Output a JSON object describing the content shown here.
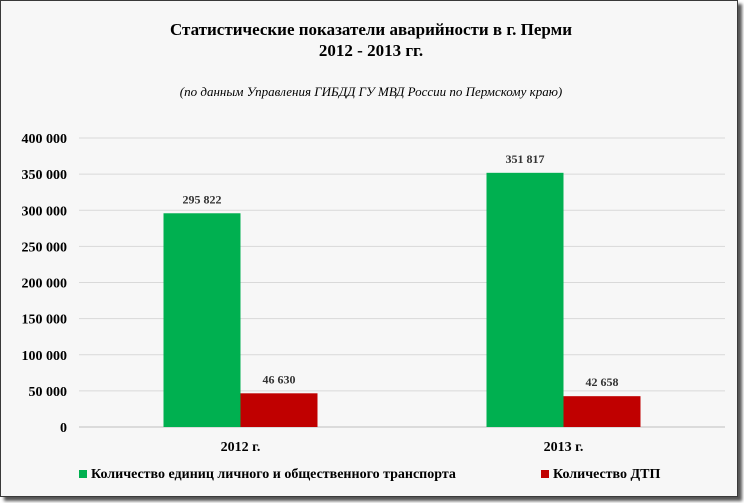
{
  "chart_data": {
    "type": "bar",
    "title_lines": [
      "Статистические показатели аварийности в г. Перми",
      "2012 - 2013 гг."
    ],
    "subtitle": "(по данным Управления ГИБДД ГУ МВД России по Пермскому краю)",
    "categories": [
      "2012 г.",
      "2013 г."
    ],
    "series": [
      {
        "name": "Количество единиц личного и общественного транспорта",
        "color": "#00b050",
        "values": [
          295822,
          351817
        ],
        "labels": [
          "295 822",
          "351 817"
        ]
      },
      {
        "name": "Количество ДТП",
        "color": "#c00000",
        "values": [
          46630,
          42658
        ],
        "labels": [
          "46 630",
          "42 658"
        ]
      }
    ],
    "ylim": [
      0,
      400000
    ],
    "yticks": [
      0,
      50000,
      100000,
      150000,
      200000,
      250000,
      300000,
      350000,
      400000
    ],
    "ytick_labels": [
      "0",
      "50 000",
      "100 000",
      "150 000",
      "200 000",
      "250 000",
      "300 000",
      "350 000",
      "400 000"
    ],
    "grid": true,
    "legend_position": "bottom"
  }
}
